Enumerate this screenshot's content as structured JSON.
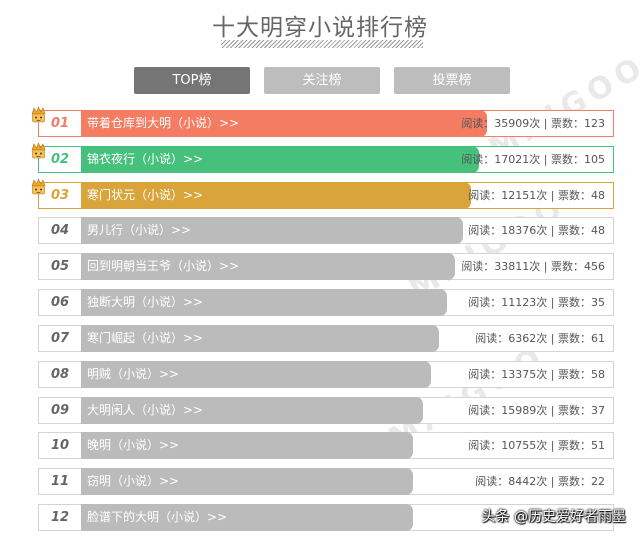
{
  "title": "十大明穿小说排行榜",
  "tabs": [
    {
      "label": "TOP榜",
      "active": true
    },
    {
      "label": "关注榜",
      "active": false
    },
    {
      "label": "投票榜",
      "active": false
    }
  ],
  "stat_labels": {
    "reads": "阅读：",
    "times": "次",
    "sep": " | ",
    "votes": "票数："
  },
  "rank_colors": [
    "#f47c62",
    "#45c17c",
    "#d9a43a"
  ],
  "default_color": "#bbbbbb",
  "items": [
    {
      "rank": "01",
      "name": "带着仓库到大明（小说）>>",
      "reads": "35909",
      "votes": "123"
    },
    {
      "rank": "02",
      "name": "锦衣夜行（小说）>>",
      "reads": "17021",
      "votes": "105"
    },
    {
      "rank": "03",
      "name": "寒门状元（小说）>>",
      "reads": "12151",
      "votes": "48"
    },
    {
      "rank": "04",
      "name": "男儿行（小说）>>",
      "reads": "18376",
      "votes": "48"
    },
    {
      "rank": "05",
      "name": "回到明朝当王爷（小说）>>",
      "reads": "33811",
      "votes": "456"
    },
    {
      "rank": "06",
      "name": "独断大明（小说）>>",
      "reads": "11123",
      "votes": "35"
    },
    {
      "rank": "07",
      "name": "寒门崛起（小说）>>",
      "reads": "6362",
      "votes": "61"
    },
    {
      "rank": "08",
      "name": "明贼（小说）>>",
      "reads": "13375",
      "votes": "58"
    },
    {
      "rank": "09",
      "name": "大明闲人（小说）>>",
      "reads": "15989",
      "votes": "37"
    },
    {
      "rank": "10",
      "name": "晚明（小说）>>",
      "reads": "10755",
      "votes": "51"
    },
    {
      "rank": "11",
      "name": "窃明（小说）>>",
      "reads": "8442",
      "votes": "22"
    },
    {
      "rank": "12",
      "name": "脸谱下的大明（小说）>>",
      "reads": "",
      "votes": ""
    }
  ],
  "watermark": "头条 @历史爱好者雨墨",
  "background_mark": "MAIGOO",
  "crown_icon": "crown-icon"
}
